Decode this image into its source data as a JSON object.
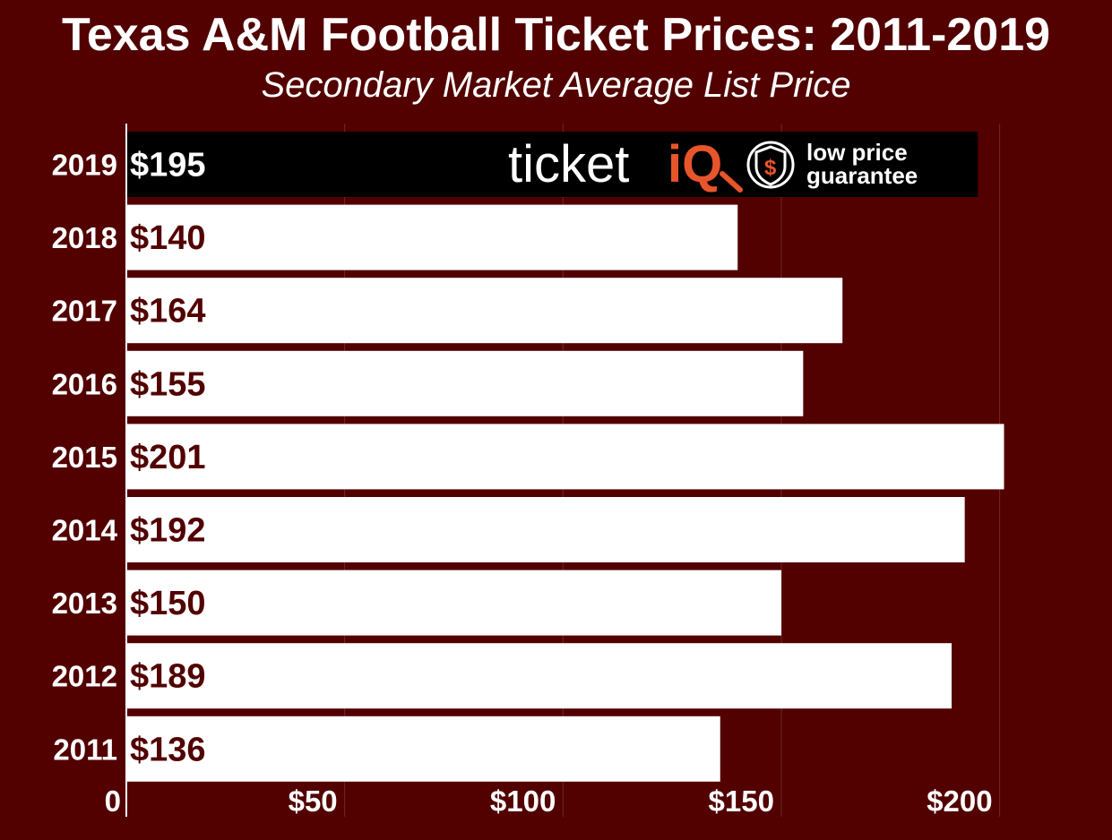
{
  "colors": {
    "background": "#520000",
    "bar": "#ffffff",
    "highlight_bar": "#000000",
    "value_text": "#520000",
    "highlight_value_text": "#ffffff",
    "gridline": "#6e2a2a",
    "logo_accent": "#e8552b"
  },
  "logo": {
    "brand_main": "ticket",
    "brand_accent": "iQ",
    "tagline_line1": "low price",
    "tagline_line2": "guarantee",
    "icon": "shield-dollar-icon"
  },
  "chart_data": {
    "type": "bar",
    "orientation": "horizontal",
    "title": "Texas A&M Football Ticket Prices: 2011-2019",
    "subtitle": "Secondary Market Average List Price",
    "categories": [
      "2019",
      "2018",
      "2017",
      "2016",
      "2015",
      "2014",
      "2013",
      "2012",
      "2011"
    ],
    "values": [
      195,
      140,
      164,
      155,
      201,
      192,
      150,
      189,
      136
    ],
    "value_labels": [
      "$195",
      "$140",
      "$164",
      "$155",
      "$201",
      "$192",
      "$150",
      "$189",
      "$136"
    ],
    "highlight_category": "2019",
    "xlim": [
      0,
      205
    ],
    "x_ticks": [
      0,
      50,
      100,
      150,
      200
    ],
    "x_tick_labels": [
      "0",
      "$50",
      "$100",
      "$150",
      "$200"
    ],
    "grid": true,
    "legend": "none"
  }
}
